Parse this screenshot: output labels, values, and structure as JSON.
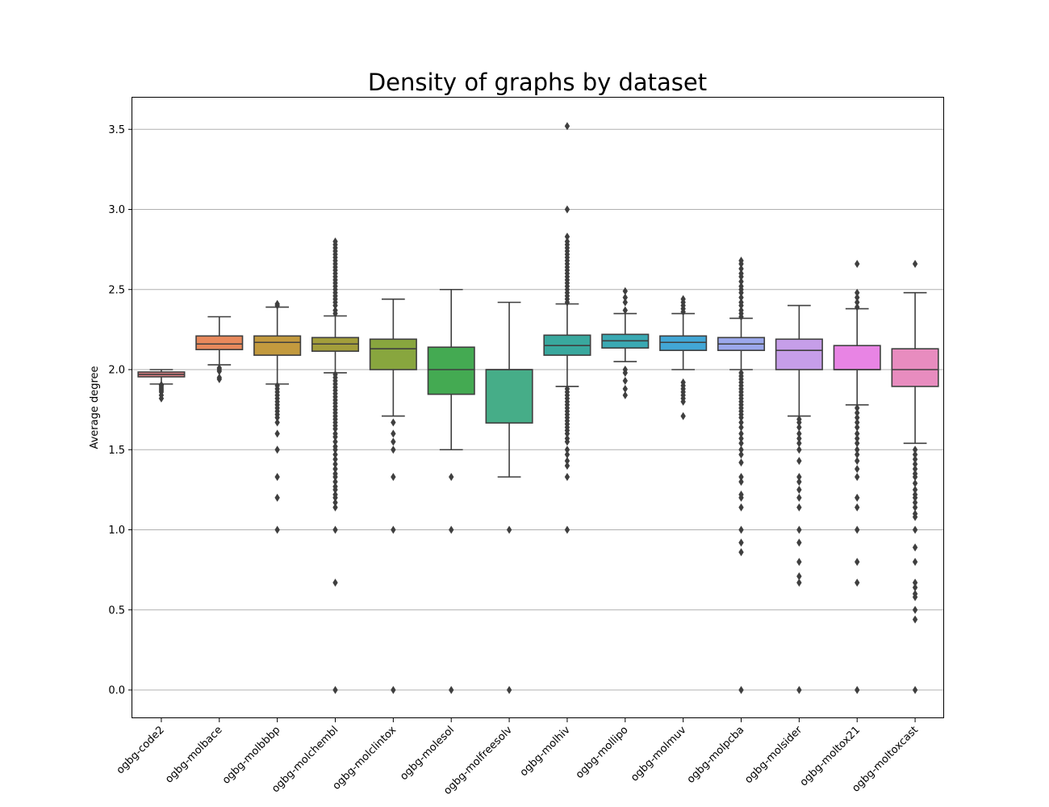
{
  "chart_data": {
    "type": "box",
    "title": "Density of graphs by dataset",
    "xlabel": "",
    "ylabel": "Average degree",
    "ylim": [
      -0.18,
      3.7
    ],
    "yticks": [
      0.0,
      0.5,
      1.0,
      1.5,
      2.0,
      2.5,
      3.0,
      3.5
    ],
    "ytick_labels": [
      "0.0",
      "0.5",
      "1.0",
      "1.5",
      "2.0",
      "2.5",
      "3.0",
      "3.5"
    ],
    "grid": "horizontal",
    "categories": [
      "ogbg-code2",
      "ogbg-molbace",
      "ogbg-molbbbp",
      "ogbg-molchembl",
      "ogbg-molclintox",
      "ogbg-molesol",
      "ogbg-molfreesolv",
      "ogbg-molhiv",
      "ogbg-mollipo",
      "ogbg-molmuv",
      "ogbg-molpcba",
      "ogbg-molsider",
      "ogbg-moltox21",
      "ogbg-moltoxcast"
    ],
    "colors": [
      "#db7e82",
      "#e8895c",
      "#c39a3e",
      "#a39e3b",
      "#88a63e",
      "#44aa52",
      "#46ad88",
      "#39a89e",
      "#3aa9b3",
      "#42a7d6",
      "#9ba8ec",
      "#c69ee9",
      "#e884e4",
      "#e88cbf"
    ],
    "boxes": [
      {
        "whislo": 1.91,
        "q1": 1.955,
        "med": 1.97,
        "q3": 1.985,
        "whishi": 2.0,
        "fliers": [
          1.82,
          1.84,
          1.86,
          1.87,
          1.88,
          1.89,
          1.9,
          1.905
        ]
      },
      {
        "whislo": 2.03,
        "q1": 2.125,
        "med": 2.16,
        "q3": 2.21,
        "whishi": 2.33,
        "fliers": [
          1.94,
          1.95,
          1.99,
          2.0,
          2.01
        ]
      },
      {
        "whislo": 1.91,
        "q1": 2.09,
        "med": 2.17,
        "q3": 2.21,
        "whishi": 2.39,
        "fliers": [
          2.4,
          2.41,
          1.9,
          1.88,
          1.86,
          1.84,
          1.82,
          1.8,
          1.78,
          1.76,
          1.74,
          1.72,
          1.7,
          1.67,
          1.6,
          1.5,
          1.33,
          1.2,
          1.0
        ]
      },
      {
        "whislo": 1.98,
        "q1": 2.115,
        "med": 2.16,
        "q3": 2.2,
        "whishi": 2.335,
        "fliers": [
          2.35,
          2.37,
          2.4,
          2.42,
          2.44,
          2.46,
          2.48,
          2.5,
          2.52,
          2.54,
          2.56,
          2.58,
          2.6,
          2.62,
          2.64,
          2.66,
          2.68,
          2.7,
          2.72,
          2.74,
          2.76,
          2.78,
          2.8,
          1.97,
          1.95,
          1.93,
          1.91,
          1.89,
          1.87,
          1.85,
          1.83,
          1.81,
          1.79,
          1.77,
          1.75,
          1.73,
          1.71,
          1.69,
          1.67,
          1.65,
          1.63,
          1.6,
          1.58,
          1.55,
          1.52,
          1.5,
          1.47,
          1.44,
          1.41,
          1.38,
          1.35,
          1.33,
          1.3,
          1.27,
          1.25,
          1.22,
          1.2,
          1.17,
          1.14,
          1.0,
          0.67,
          0.0
        ]
      },
      {
        "whislo": 1.71,
        "q1": 2.0,
        "med": 2.13,
        "q3": 2.19,
        "whishi": 2.44,
        "fliers": [
          1.67,
          1.6,
          1.55,
          1.5,
          1.33,
          1.0,
          0.0
        ]
      },
      {
        "whislo": 1.5,
        "q1": 1.846,
        "med": 2.0,
        "q3": 2.14,
        "whishi": 2.5,
        "fliers": [
          1.33,
          1.0,
          0.0
        ]
      },
      {
        "whislo": 1.33,
        "q1": 1.667,
        "med": 2.0,
        "q3": 2.0,
        "whishi": 2.42,
        "fliers": [
          1.0,
          0.0
        ]
      },
      {
        "whislo": 1.895,
        "q1": 2.09,
        "med": 2.15,
        "q3": 2.215,
        "whishi": 2.41,
        "fliers": [
          2.42,
          2.44,
          2.46,
          2.48,
          2.5,
          2.52,
          2.54,
          2.56,
          2.58,
          2.6,
          2.62,
          2.64,
          2.66,
          2.68,
          2.7,
          2.72,
          2.74,
          2.76,
          2.78,
          2.8,
          2.83,
          3.0,
          3.52,
          1.88,
          1.86,
          1.84,
          1.82,
          1.8,
          1.78,
          1.76,
          1.74,
          1.72,
          1.7,
          1.68,
          1.66,
          1.64,
          1.62,
          1.6,
          1.57,
          1.55,
          1.5,
          1.47,
          1.43,
          1.4,
          1.33,
          1.0
        ]
      },
      {
        "whislo": 2.05,
        "q1": 2.135,
        "med": 2.18,
        "q3": 2.22,
        "whishi": 2.35,
        "fliers": [
          2.37,
          2.42,
          2.45,
          2.49,
          2.0,
          1.98,
          1.93,
          1.88,
          1.84
        ]
      },
      {
        "whislo": 2.0,
        "q1": 2.12,
        "med": 2.17,
        "q3": 2.21,
        "whishi": 2.35,
        "fliers": [
          2.36,
          2.38,
          2.4,
          2.42,
          2.44,
          1.92,
          1.9,
          1.88,
          1.86,
          1.84,
          1.82,
          1.8,
          1.71
        ]
      },
      {
        "whislo": 2.0,
        "q1": 2.12,
        "med": 2.16,
        "q3": 2.2,
        "whishi": 2.32,
        "fliers": [
          2.33,
          2.35,
          2.37,
          2.4,
          2.42,
          2.45,
          2.48,
          2.5,
          2.52,
          2.55,
          2.58,
          2.6,
          2.63,
          2.66,
          2.68,
          1.98,
          1.96,
          1.94,
          1.92,
          1.9,
          1.88,
          1.86,
          1.84,
          1.82,
          1.8,
          1.78,
          1.76,
          1.74,
          1.72,
          1.7,
          1.67,
          1.64,
          1.6,
          1.57,
          1.54,
          1.5,
          1.47,
          1.42,
          1.33,
          1.3,
          1.22,
          1.2,
          1.14,
          1.0,
          0.92,
          0.86,
          0.0
        ]
      },
      {
        "whislo": 1.71,
        "q1": 2.0,
        "med": 2.12,
        "q3": 2.19,
        "whishi": 2.4,
        "fliers": [
          1.69,
          1.67,
          1.64,
          1.6,
          1.57,
          1.54,
          1.5,
          1.43,
          1.33,
          1.3,
          1.25,
          1.2,
          1.14,
          1.0,
          0.92,
          0.8,
          0.71,
          0.67,
          0.0
        ]
      },
      {
        "whislo": 1.78,
        "q1": 2.0,
        "med": 2.0,
        "q3": 2.15,
        "whishi": 2.38,
        "fliers": [
          2.39,
          2.42,
          2.45,
          2.48,
          2.66,
          1.76,
          1.73,
          1.7,
          1.67,
          1.64,
          1.6,
          1.57,
          1.54,
          1.5,
          1.47,
          1.43,
          1.38,
          1.33,
          1.2,
          1.14,
          1.0,
          0.8,
          0.67,
          0.0
        ]
      },
      {
        "whislo": 1.54,
        "q1": 1.895,
        "med": 2.0,
        "q3": 2.13,
        "whishi": 2.48,
        "fliers": [
          2.66,
          1.5,
          1.47,
          1.44,
          1.41,
          1.38,
          1.35,
          1.33,
          1.29,
          1.25,
          1.22,
          1.2,
          1.17,
          1.14,
          1.1,
          1.08,
          1.0,
          0.89,
          0.8,
          0.67,
          0.64,
          0.6,
          0.58,
          0.5,
          0.44,
          0.0
        ]
      }
    ]
  }
}
